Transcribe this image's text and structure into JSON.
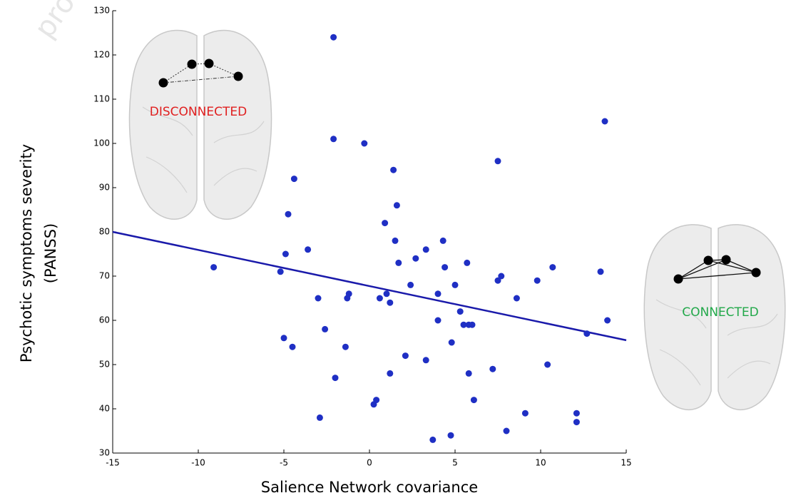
{
  "chart_data": {
    "type": "scatter",
    "watermark": "proo",
    "xlabel": "Salience Network covariance",
    "ylabel": [
      "Psychotic symptoms severity",
      "(PANSS)"
    ],
    "annotations": [
      {
        "text": "DISCONNECTED",
        "color": "#e02020"
      },
      {
        "text": "CONNECTED",
        "color": "#22a84a"
      }
    ],
    "xlim": [
      -15,
      15
    ],
    "xticks": [
      -15,
      -10,
      -5,
      0,
      5,
      10,
      15
    ],
    "ylim": [
      30,
      130
    ],
    "yticks": [
      30,
      40,
      50,
      60,
      70,
      80,
      90,
      100,
      110,
      120,
      130
    ],
    "color": "#1f2fc4",
    "x": [
      -2.1,
      -2.1,
      -0.3,
      1.4,
      -4.4,
      7.5,
      13.75,
      1.6,
      -4.75,
      0.9,
      1.5,
      4.3,
      -3.6,
      -4.9,
      3.3,
      2.7,
      1.7,
      5.7,
      4.4,
      -9.1,
      -5.2,
      10.7,
      13.5,
      7.7,
      7.5,
      9.8,
      2.4,
      5.0,
      4.0,
      1.0,
      -1.2,
      -1.3,
      -3.0,
      0.6,
      1.2,
      8.6,
      5.3,
      4.0,
      13.9,
      5.5,
      6.0,
      5.8,
      12.7,
      -5.0,
      -2.6,
      4.8,
      -4.5,
      -1.4,
      2.1,
      3.3,
      10.4,
      7.2,
      1.2,
      5.8,
      -2.0,
      6.1,
      0.4,
      0.25,
      9.1,
      12.1,
      12.1,
      -2.9,
      8.0,
      4.75,
      3.7
    ],
    "values": [
      124,
      101,
      100,
      94,
      92,
      96,
      105,
      86,
      84,
      82,
      78,
      78,
      76,
      75,
      76,
      74,
      73,
      73,
      72,
      72,
      71,
      72,
      71,
      70,
      69,
      69,
      68,
      68,
      66,
      66,
      66,
      65,
      65,
      65,
      64,
      65,
      62,
      60,
      60,
      59,
      59,
      59,
      57,
      56,
      58,
      55,
      54,
      54,
      52,
      51,
      50,
      49,
      48,
      48,
      47,
      42,
      42,
      41,
      39,
      39,
      37,
      38,
      35,
      34,
      33
    ],
    "fit_line": {
      "x": [
        -15,
        15
      ],
      "y": [
        80,
        55.5
      ],
      "color": "#1a1aaa"
    }
  }
}
